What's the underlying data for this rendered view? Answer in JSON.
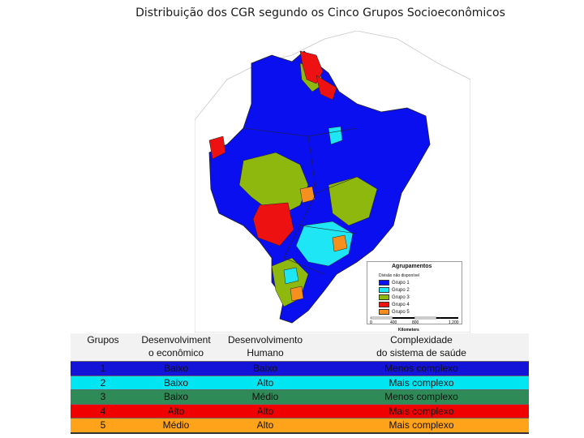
{
  "title": "Distribuição dos CGR segundo os Cinco Grupos Socioeconômicos",
  "colors": {
    "grupo1": "#0a0ff0",
    "grupo2": "#1ee6f5",
    "grupo3": "#8fb80f",
    "grupo4": "#ee1111",
    "grupo5": "#f5901e",
    "neighbor": "#ffffff",
    "state_border": "#222222"
  },
  "legend": {
    "title": "Agrupamentos",
    "no_data": "Divisão não disponível",
    "items": [
      "Grupo 1",
      "Grupo 2",
      "Grupo 3",
      "Grupo 4",
      "Grupo 5"
    ]
  },
  "scale": {
    "ticks": [
      "0",
      "400",
      "800",
      "1,200"
    ],
    "unit": "Kilometers"
  },
  "table": {
    "headers": [
      "Grupos",
      "Desenvolviment o econômico",
      "Desenvolvimento Humano",
      "Complexidade do sistema de saúde"
    ],
    "header_lines": [
      [
        "Grupos"
      ],
      [
        "Desenvolviment",
        "o econômico"
      ],
      [
        "Desenvolvimento",
        "Humano"
      ],
      [
        "Complexidade",
        "do sistema de saúde"
      ]
    ],
    "rows": [
      {
        "grupo": "1",
        "eco": "Baixo",
        "hum": "Baixo",
        "saude": "Menos complexo",
        "bg": "#1414d8"
      },
      {
        "grupo": "2",
        "eco": "Baixo",
        "hum": "Alto",
        "saude": "Mais complexo",
        "bg": "#00e5f2"
      },
      {
        "grupo": "3",
        "eco": "Baixo",
        "hum": "Médio",
        "saude": "Menos complexo",
        "bg": "#2e8b57"
      },
      {
        "grupo": "4",
        "eco": "Alto",
        "hum": "Alto",
        "saude": "Mais complexo",
        "bg": "#f00000"
      },
      {
        "grupo": "5",
        "eco": "Médio",
        "hum": "Alto",
        "saude": "Mais complexo",
        "bg": "#ffa31a"
      }
    ]
  }
}
